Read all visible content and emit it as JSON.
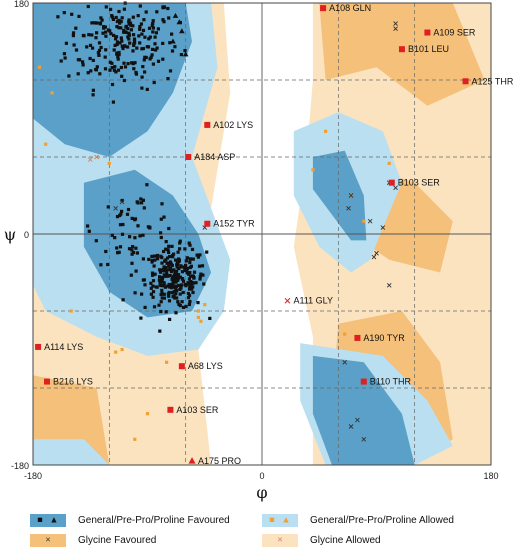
{
  "chart_data": {
    "type": "scatter",
    "title": "",
    "xlabel": "φ",
    "ylabel": "ψ",
    "xlim": [
      -180,
      180
    ],
    "ylim": [
      -180,
      180
    ],
    "xticks": [
      "-180",
      "0",
      "180"
    ],
    "yticks": [
      "180",
      "0",
      "-180"
    ],
    "grid": true,
    "regions": {
      "general_favoured_color": "#5aa0c8",
      "general_allowed_color": "#b9dff0",
      "glycine_favoured_color": "#f5c07a",
      "glycine_allowed_color": "#fbe3bf"
    },
    "labeled_residues": [
      {
        "label": "A108 GLN",
        "phi": 48,
        "psi": 176,
        "kind": "outlier"
      },
      {
        "label": "A109 SER",
        "phi": 130,
        "psi": 157,
        "kind": "outlier"
      },
      {
        "label": "B101 LEU",
        "phi": 110,
        "psi": 144,
        "kind": "outlier"
      },
      {
        "label": "A125 THR",
        "phi": 160,
        "psi": 119,
        "kind": "outlier"
      },
      {
        "label": "A102 LYS",
        "phi": -43,
        "psi": 85,
        "kind": "outlier"
      },
      {
        "label": "A184 ASP",
        "phi": -58,
        "psi": 60,
        "kind": "outlier"
      },
      {
        "label": "B103 SER",
        "phi": 102,
        "psi": 40,
        "kind": "outlier"
      },
      {
        "label": "A152 TYR",
        "phi": -43,
        "psi": 8,
        "kind": "outlier"
      },
      {
        "label": "A111 GLY",
        "phi": 20,
        "psi": -52,
        "kind": "glycine-outlier"
      },
      {
        "label": "A190 TYR",
        "phi": 75,
        "psi": -81,
        "kind": "outlier"
      },
      {
        "label": "A114 LYS",
        "phi": -176,
        "psi": -88,
        "kind": "outlier"
      },
      {
        "label": "A68 LYS",
        "phi": -63,
        "psi": -103,
        "kind": "outlier"
      },
      {
        "label": "B216 LYS",
        "phi": -169,
        "psi": -115,
        "kind": "outlier"
      },
      {
        "label": "B110 THR",
        "phi": 80,
        "psi": -115,
        "kind": "outlier"
      },
      {
        "label": "A103 SER",
        "phi": -72,
        "psi": -137,
        "kind": "outlier"
      },
      {
        "label": "A175 PRO",
        "phi": -55,
        "psi": -177,
        "kind": "proline-outlier"
      }
    ],
    "series": [
      {
        "name": "General/Pre-Pro/Proline Favoured",
        "marker": "square",
        "color": "#111111"
      },
      {
        "name": "General/Pre-Pro/Proline Allowed",
        "marker": "square",
        "color": "#f0a030"
      },
      {
        "name": "Glycine Favoured",
        "marker": "x",
        "color": "#333333"
      },
      {
        "name": "Glycine Allowed",
        "marker": "x",
        "color": "#e07070"
      }
    ]
  },
  "legend": {
    "general_favoured": "General/Pre-Pro/Proline Favoured",
    "general_allowed": "General/Pre-Pro/Proline Allowed",
    "glycine_favoured": "Glycine Favoured",
    "glycine_allowed": "Glycine Allowed"
  }
}
